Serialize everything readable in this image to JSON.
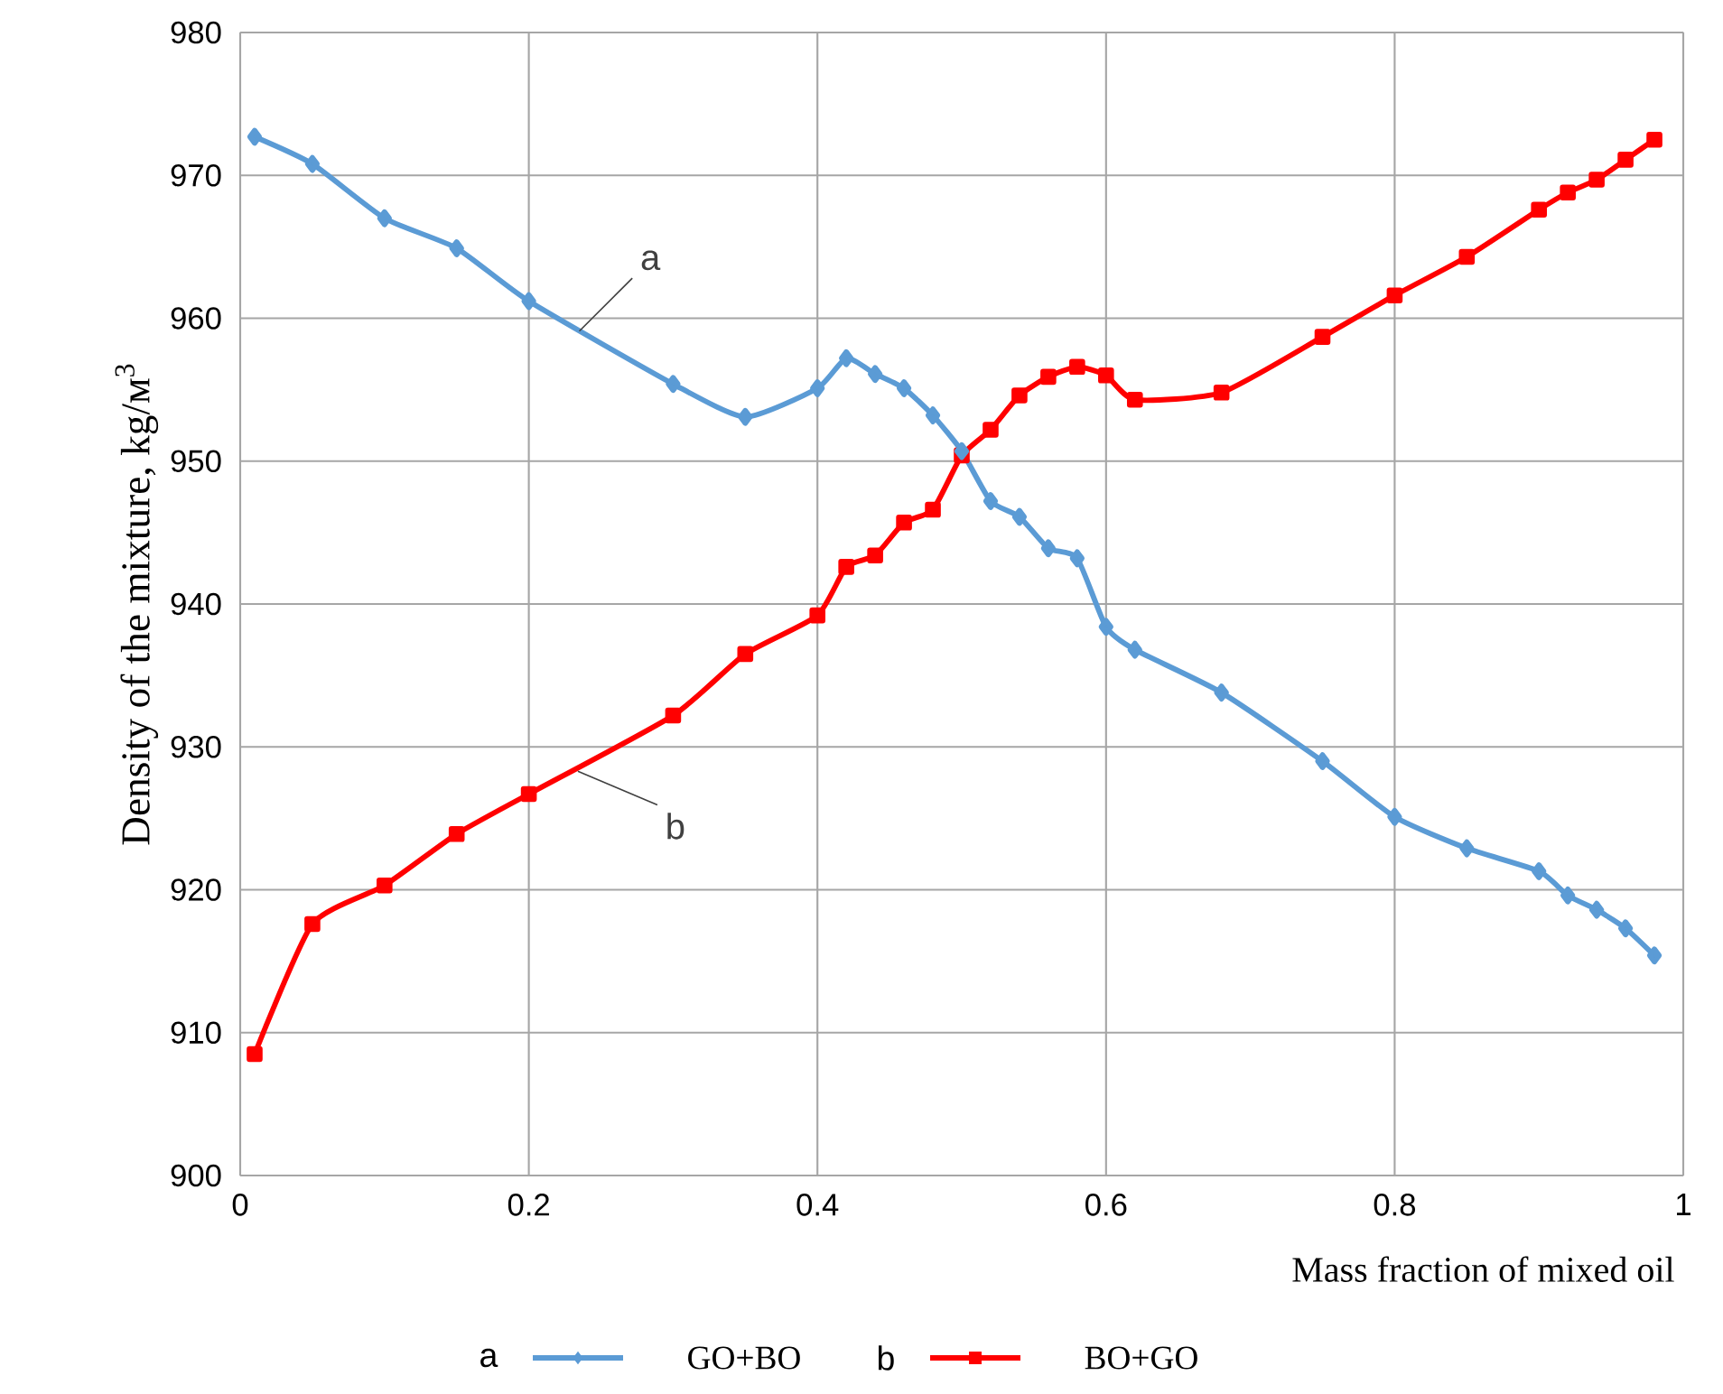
{
  "chart_data": {
    "type": "line",
    "xlabel": "Mass fraction of mixed oil",
    "ylabel": "Density of the mixture, kg/м$^{3}$",
    "xlim": [
      0,
      1
    ],
    "ylim": [
      900,
      980
    ],
    "xticks": [
      0,
      0.2,
      0.4,
      0.6,
      0.8,
      1
    ],
    "yticks": [
      900,
      910,
      920,
      930,
      940,
      950,
      960,
      970,
      980
    ],
    "grid": true,
    "legend": "bottom",
    "line_style": "solid",
    "annotations": [
      {
        "text": "a",
        "x": 0.235,
        "y": 959.1
      },
      {
        "text": "b",
        "x": 0.234,
        "y": 928.3
      }
    ],
    "series": [
      {
        "name": "GO+BO",
        "color": "#5b9bd5",
        "marker": "diamond",
        "x": [
          0.01,
          0.05,
          0.1,
          0.15,
          0.2,
          0.3,
          0.35,
          0.4,
          0.42,
          0.44,
          0.46,
          0.48,
          0.5,
          0.52,
          0.54,
          0.56,
          0.58,
          0.6,
          0.62,
          0.68,
          0.75,
          0.8,
          0.85,
          0.9,
          0.92,
          0.94,
          0.96,
          0.98
        ],
        "values": [
          972.7,
          970.8,
          967.0,
          964.9,
          961.2,
          955.4,
          953.1,
          955.1,
          957.2,
          956.1,
          955.1,
          953.2,
          950.7,
          947.2,
          946.1,
          943.9,
          943.2,
          938.4,
          936.8,
          933.8,
          929.0,
          925.1,
          922.9,
          921.3,
          919.6,
          918.6,
          917.3,
          915.4
        ]
      },
      {
        "name": "BO+GO",
        "color": "#ff0000",
        "marker": "square",
        "x": [
          0.01,
          0.05,
          0.1,
          0.15,
          0.2,
          0.3,
          0.35,
          0.4,
          0.42,
          0.44,
          0.46,
          0.48,
          0.5,
          0.52,
          0.54,
          0.56,
          0.58,
          0.6,
          0.62,
          0.68,
          0.75,
          0.8,
          0.85,
          0.9,
          0.92,
          0.94,
          0.96,
          0.98
        ],
        "values": [
          908.5,
          917.6,
          920.3,
          923.9,
          926.7,
          932.2,
          936.5,
          939.2,
          942.6,
          943.4,
          945.7,
          946.6,
          950.4,
          952.2,
          954.6,
          955.9,
          956.6,
          956.0,
          954.3,
          954.8,
          958.7,
          961.6,
          964.3,
          967.6,
          968.8,
          969.7,
          971.1,
          972.5
        ]
      }
    ]
  }
}
